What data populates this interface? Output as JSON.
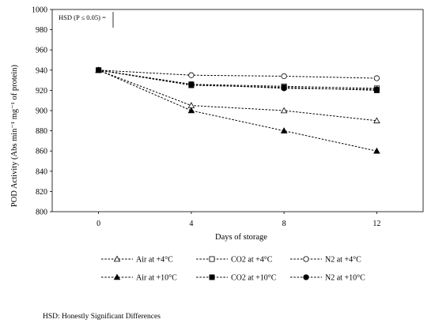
{
  "chart_data": {
    "type": "line",
    "title": "",
    "xlabel": "Days of storage",
    "ylabel": "POD Activity (Abs min⁻¹ mg⁻¹ of protein)",
    "ylim": [
      800,
      1000
    ],
    "y_ticks": [
      800,
      820,
      840,
      860,
      880,
      900,
      920,
      940,
      960,
      980,
      1000
    ],
    "x": [
      0,
      4,
      8,
      12
    ],
    "x_tick_labels": [
      "0",
      "4",
      "8",
      "12"
    ],
    "grid": false,
    "legend_position": "bottom",
    "series": [
      {
        "name": "Air at +4°C",
        "marker": "triangle-open",
        "values": [
          940,
          905,
          900,
          890
        ]
      },
      {
        "name": "CO2 at +4°C",
        "marker": "square-open",
        "values": [
          940,
          926,
          924,
          922
        ]
      },
      {
        "name": "N2 at +4°C",
        "marker": "circle-open",
        "values": [
          940,
          935,
          934,
          932
        ]
      },
      {
        "name": "Air at +10°C",
        "marker": "triangle-filled",
        "values": [
          940,
          900,
          880,
          860
        ]
      },
      {
        "name": "CO2 at +10°C",
        "marker": "square-filled",
        "values": [
          940,
          925,
          923,
          920
        ]
      },
      {
        "name": "N2 at +10°C",
        "marker": "circle-filled",
        "values": [
          940,
          926,
          922,
          921
        ]
      }
    ],
    "annotations": {
      "hsd_label": "HSD (P ≤ 0.05) ="
    }
  },
  "footnote": "HSD: Honestly Significant Differences"
}
